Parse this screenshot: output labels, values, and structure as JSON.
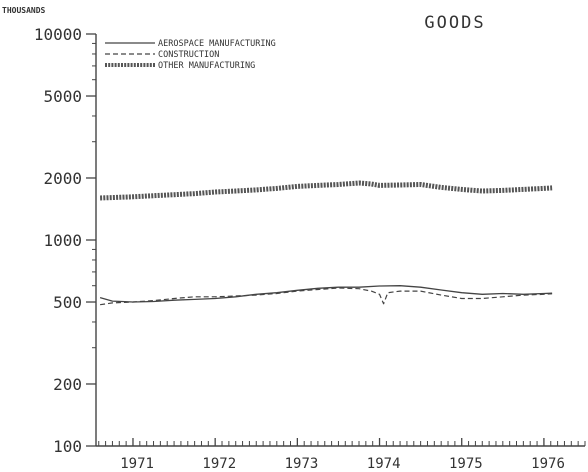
{
  "chart_data": {
    "type": "line",
    "title": "GOODS",
    "ylabel": "THOUSANDS",
    "xlabel": "",
    "yscale": "log",
    "ylim": [
      100,
      10000
    ],
    "xlim": [
      1970.55,
      1976.5
    ],
    "y_major_ticks": [
      100,
      200,
      500,
      1000,
      2000,
      5000,
      10000
    ],
    "y_tick_labels": [
      "100",
      "200",
      "500",
      "1000",
      "2000",
      "5000",
      "10000"
    ],
    "x_tick_labels": [
      "1971",
      "1972",
      "1973",
      "1974",
      "1975",
      "1976"
    ],
    "x_tick_positions": [
      1971.0,
      1972.0,
      1973.0,
      1974.0,
      1975.0,
      1976.0
    ],
    "legend_position": "top-left",
    "grid": false,
    "series": [
      {
        "name": "AEROSPACE MANUFACTURING",
        "style": "solid",
        "x": [
          1970.6,
          1970.75,
          1971.0,
          1971.25,
          1971.5,
          1971.75,
          1972.0,
          1972.25,
          1972.5,
          1972.75,
          1973.0,
          1973.25,
          1973.5,
          1973.75,
          1974.0,
          1974.25,
          1974.5,
          1974.75,
          1975.0,
          1975.25,
          1975.5,
          1975.75,
          1976.0,
          1976.1
        ],
        "y": [
          525,
          505,
          500,
          503,
          510,
          515,
          520,
          530,
          545,
          555,
          570,
          583,
          590,
          590,
          598,
          600,
          590,
          572,
          555,
          545,
          550,
          545,
          550,
          552
        ]
      },
      {
        "name": "CONSTRUCTION",
        "style": "dashed",
        "x": [
          1970.6,
          1970.75,
          1971.0,
          1971.25,
          1971.5,
          1971.75,
          1972.0,
          1972.25,
          1972.5,
          1972.75,
          1973.0,
          1973.25,
          1973.5,
          1973.75,
          1973.9,
          1974.0,
          1974.05,
          1974.1,
          1974.25,
          1974.5,
          1974.75,
          1975.0,
          1975.25,
          1975.5,
          1975.75,
          1976.0,
          1976.1
        ],
        "y": [
          485,
          495,
          500,
          508,
          520,
          530,
          530,
          535,
          540,
          550,
          565,
          575,
          585,
          580,
          565,
          545,
          490,
          555,
          565,
          565,
          540,
          520,
          520,
          530,
          540,
          545,
          548
        ]
      },
      {
        "name": "OTHER MANUFACTURING",
        "style": "thick",
        "x": [
          1970.6,
          1971.0,
          1971.25,
          1971.5,
          1971.75,
          1972.0,
          1972.25,
          1972.5,
          1972.75,
          1973.0,
          1973.25,
          1973.5,
          1973.75,
          1973.9,
          1974.0,
          1974.25,
          1974.5,
          1974.75,
          1975.0,
          1975.25,
          1975.5,
          1975.75,
          1976.0,
          1976.1
        ],
        "y": [
          1600,
          1620,
          1640,
          1660,
          1680,
          1710,
          1730,
          1750,
          1780,
          1820,
          1840,
          1860,
          1890,
          1870,
          1840,
          1850,
          1860,
          1800,
          1760,
          1730,
          1740,
          1760,
          1780,
          1790
        ]
      }
    ]
  }
}
